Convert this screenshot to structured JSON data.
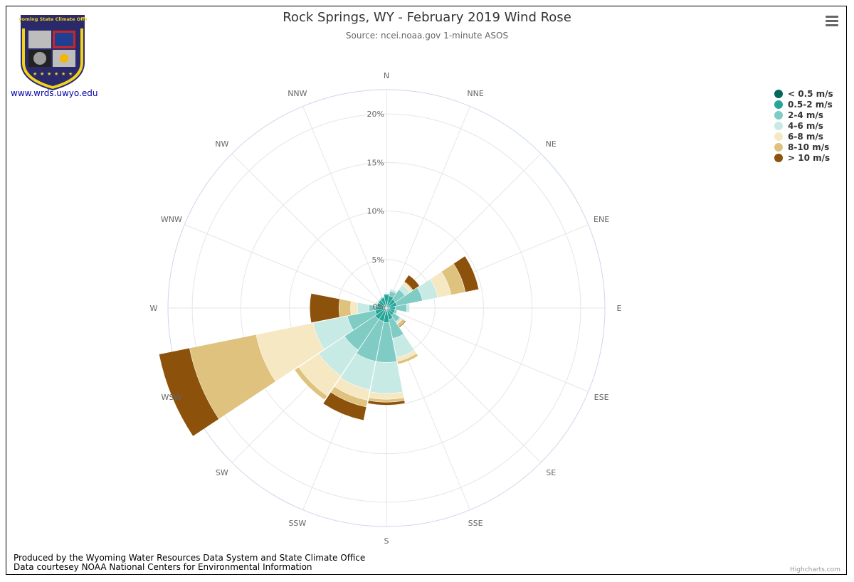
{
  "chart": {
    "title": "Rock Springs, WY - February 2019 Wind Rose",
    "subtitle": "Source: ncei.noaa.gov 1-minute ASOS",
    "logo_link": "www.wrds.uwyo.edu",
    "logo_text": "Wyoming State Climate Office",
    "footer_line1": "Produced by the Wyoming Water Resources Data System and State Climate Office",
    "footer_line2": "Data courtesey NOAA National Centers for Environmental Information",
    "credits": "Highcharts.com",
    "menu_icon": "hamburger-menu-icon"
  },
  "chart_data": {
    "type": "wind-rose (stacked polar column)",
    "categories": [
      "N",
      "NNE",
      "NE",
      "ENE",
      "E",
      "ESE",
      "SE",
      "SSE",
      "S",
      "SSW",
      "SW",
      "WSW",
      "W",
      "WNW",
      "NW",
      "NNW"
    ],
    "radial_axis": {
      "min": 0,
      "max": 22.5,
      "ticks": [
        0,
        5,
        10,
        15,
        20
      ],
      "tick_labels": [
        "0%",
        "5%",
        "10%",
        "15%",
        "20%"
      ]
    },
    "series": [
      {
        "name": "< 0.5 m/s",
        "color": "#00695c",
        "values": [
          0.3,
          0.3,
          0.3,
          0.3,
          0.3,
          0.3,
          0.3,
          0.3,
          0.3,
          0.3,
          0.3,
          0.3,
          0.3,
          0.3,
          0.3,
          0.3
        ]
      },
      {
        "name": "0.5-2 m/s",
        "color": "#26a69a",
        "values": [
          1.1,
          1.0,
          0.8,
          0.8,
          0.6,
          0.6,
          0.6,
          0.9,
          1.2,
          1.1,
          1.1,
          0.9,
          0.8,
          0.7,
          0.7,
          0.8
        ]
      },
      {
        "name": "2-4 m/s",
        "color": "#80cbc4",
        "values": [
          0.1,
          0.5,
          1.2,
          2.7,
          1.2,
          0.2,
          0.8,
          2.0,
          4.1,
          4.2,
          3.8,
          2.9,
          0.7,
          0.0,
          0.1,
          0.1
        ]
      },
      {
        "name": "4-6 m/s",
        "color": "#c7eae5",
        "values": [
          0.0,
          0.2,
          0.6,
          1.6,
          0.3,
          0.1,
          0.2,
          2.0,
          3.2,
          3.0,
          3.2,
          3.6,
          1.2,
          0.1,
          0.0,
          0.0
        ]
      },
      {
        "name": "6-8 m/s",
        "color": "#f6e8c3",
        "values": [
          0.0,
          0.0,
          0.3,
          1.4,
          0.0,
          0.0,
          0.1,
          0.4,
          0.6,
          1.1,
          2.5,
          6.0,
          0.7,
          0.2,
          0.0,
          0.0
        ]
      },
      {
        "name": "8-10 m/s",
        "color": "#dfc27d",
        "values": [
          0.0,
          0.0,
          0.1,
          1.5,
          0.0,
          0.0,
          0.3,
          0.3,
          0.3,
          0.7,
          0.5,
          7.0,
          1.2,
          0.0,
          0.0,
          0.0
        ]
      },
      {
        "name": "> 10 m/s",
        "color": "#8c510a",
        "values": [
          0.0,
          0.0,
          0.8,
          1.4,
          0.0,
          0.0,
          0.1,
          0.0,
          0.3,
          1.4,
          0.0,
          3.2,
          3.0,
          0.0,
          0.0,
          0.0
        ]
      }
    ],
    "legend_position": "top-right",
    "grid": true
  }
}
